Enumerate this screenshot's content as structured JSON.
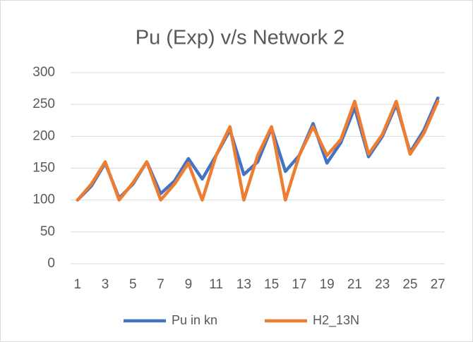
{
  "chart_data": {
    "type": "line",
    "title": "Pu (Exp) v/s Network 2",
    "categories": [
      1,
      null,
      3,
      null,
      5,
      null,
      7,
      null,
      9,
      null,
      11,
      null,
      13,
      null,
      15,
      null,
      17,
      null,
      19,
      null,
      21,
      null,
      23,
      null,
      25,
      null,
      27
    ],
    "series": [
      {
        "name": "Pu in kn",
        "color": "#4472c4",
        "values": [
          100,
          122,
          158,
          103,
          125,
          160,
          110,
          130,
          165,
          133,
          170,
          210,
          140,
          160,
          213,
          145,
          170,
          220,
          158,
          190,
          245,
          168,
          200,
          250,
          175,
          210,
          260
        ]
      },
      {
        "name": "H2_13N",
        "color": "#ed7d31",
        "values": [
          100,
          125,
          160,
          100,
          127,
          160,
          100,
          125,
          158,
          100,
          170,
          215,
          100,
          170,
          215,
          100,
          170,
          215,
          170,
          195,
          255,
          172,
          203,
          255,
          172,
          205,
          255
        ]
      }
    ],
    "ylim": [
      0,
      300
    ],
    "yticks": [
      0,
      50,
      100,
      150,
      200,
      250,
      300
    ],
    "grid": true,
    "legend": "bottom"
  }
}
